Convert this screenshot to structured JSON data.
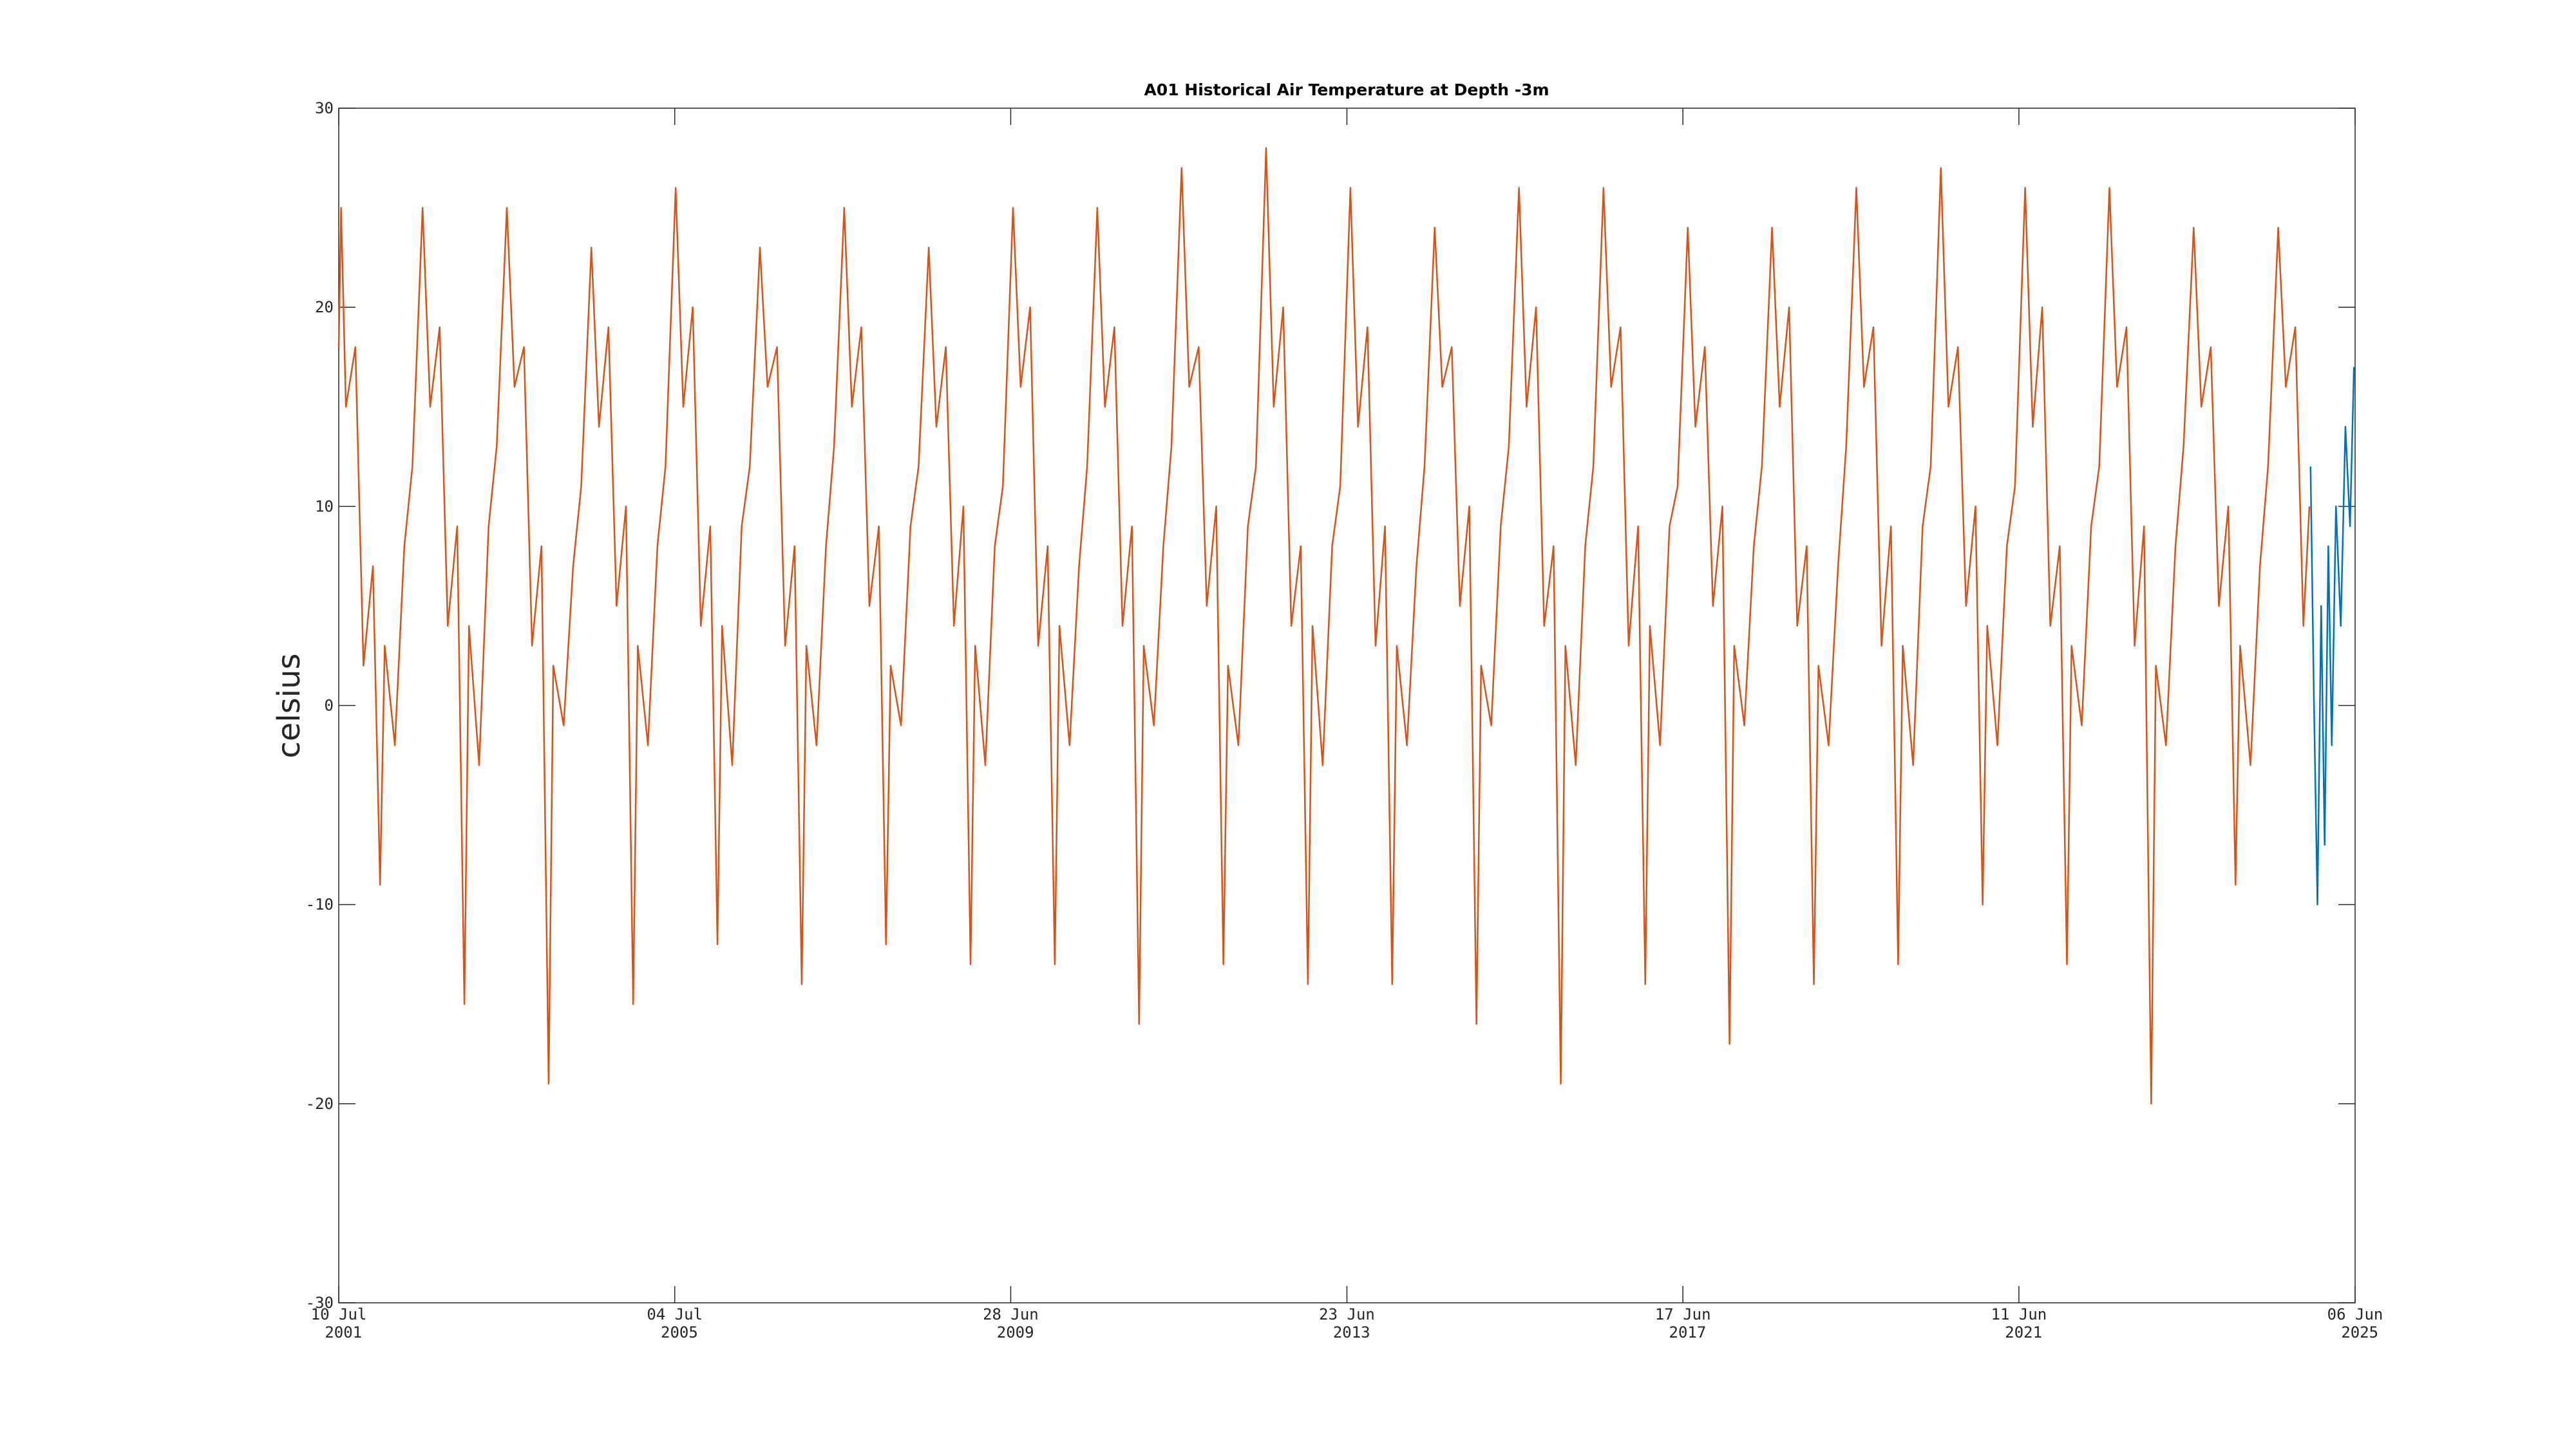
{
  "chart_data": {
    "type": "line",
    "title": "A01 Historical Air Temperature at Depth -3m",
    "ylabel": "celsius",
    "xlim": [
      "2001-07-10",
      "2025-06-06"
    ],
    "xticks": [
      {
        "value": "2001-07-10",
        "label": "10 Jul 2001"
      },
      {
        "value": "2005-07-04",
        "label": "04 Jul 2005"
      },
      {
        "value": "2009-06-28",
        "label": "28 Jun 2009"
      },
      {
        "value": "2013-06-23",
        "label": "23 Jun 2013"
      },
      {
        "value": "2017-06-17",
        "label": "17 Jun 2017"
      },
      {
        "value": "2021-06-11",
        "label": "11 Jun 2021"
      },
      {
        "value": "2025-06-06",
        "label": "06 Jun 2025"
      }
    ],
    "ylim": [
      -30,
      30
    ],
    "yticks": [
      -30,
      -20,
      -10,
      0,
      10,
      20,
      30
    ],
    "series": [
      {
        "color": "#d95319",
        "x": [
          "2001-07-10",
          "2001-07-20",
          "2001-08-10",
          "2001-09-20",
          "2001-10-25",
          "2001-12-05",
          "2002-01-05",
          "2002-01-25",
          "2002-03-10",
          "2002-04-20",
          "2002-05-25",
          "2002-07-08",
          "2002-08-10",
          "2002-09-20",
          "2002-10-25",
          "2002-12-05",
          "2003-01-05",
          "2003-01-25",
          "2003-03-10",
          "2003-04-20",
          "2003-05-25",
          "2003-07-08",
          "2003-08-10",
          "2003-09-20",
          "2003-10-25",
          "2003-12-05",
          "2004-01-05",
          "2004-01-25",
          "2004-03-10",
          "2004-04-20",
          "2004-05-25",
          "2004-07-08",
          "2004-08-10",
          "2004-09-20",
          "2004-10-25",
          "2004-12-05",
          "2005-01-05",
          "2005-01-25",
          "2005-03-10",
          "2005-04-20",
          "2005-05-25",
          "2005-07-08",
          "2005-08-10",
          "2005-09-20",
          "2005-10-25",
          "2005-12-05",
          "2006-01-05",
          "2006-01-25",
          "2006-03-10",
          "2006-04-20",
          "2006-05-25",
          "2006-07-08",
          "2006-08-10",
          "2006-09-20",
          "2006-10-25",
          "2006-12-05",
          "2007-01-05",
          "2007-01-25",
          "2007-03-10",
          "2007-04-20",
          "2007-05-25",
          "2007-07-08",
          "2007-08-10",
          "2007-09-20",
          "2007-10-25",
          "2007-12-05",
          "2008-01-05",
          "2008-01-25",
          "2008-03-10",
          "2008-04-20",
          "2008-05-25",
          "2008-07-08",
          "2008-08-10",
          "2008-09-20",
          "2008-10-25",
          "2008-12-05",
          "2009-01-05",
          "2009-01-25",
          "2009-03-10",
          "2009-04-20",
          "2009-05-25",
          "2009-07-08",
          "2009-08-10",
          "2009-09-20",
          "2009-10-25",
          "2009-12-05",
          "2010-01-05",
          "2010-01-25",
          "2010-03-10",
          "2010-04-20",
          "2010-05-25",
          "2010-07-08",
          "2010-08-10",
          "2010-09-20",
          "2010-10-25",
          "2010-12-05",
          "2011-01-05",
          "2011-01-25",
          "2011-03-10",
          "2011-04-20",
          "2011-05-25",
          "2011-07-08",
          "2011-08-10",
          "2011-09-20",
          "2011-10-25",
          "2011-12-05",
          "2012-01-05",
          "2012-01-25",
          "2012-03-10",
          "2012-04-20",
          "2012-05-25",
          "2012-07-08",
          "2012-08-10",
          "2012-09-20",
          "2012-10-25",
          "2012-12-05",
          "2013-01-05",
          "2013-01-25",
          "2013-03-10",
          "2013-04-20",
          "2013-05-25",
          "2013-07-08",
          "2013-08-10",
          "2013-09-20",
          "2013-10-25",
          "2013-12-05",
          "2014-01-05",
          "2014-01-25",
          "2014-03-10",
          "2014-04-20",
          "2014-05-25",
          "2014-07-08",
          "2014-08-10",
          "2014-09-20",
          "2014-10-25",
          "2014-12-05",
          "2015-01-05",
          "2015-01-25",
          "2015-03-10",
          "2015-04-20",
          "2015-05-25",
          "2015-07-08",
          "2015-08-10",
          "2015-09-20",
          "2015-10-25",
          "2015-12-05",
          "2016-01-05",
          "2016-01-25",
          "2016-03-10",
          "2016-04-20",
          "2016-05-25",
          "2016-07-08",
          "2016-08-10",
          "2016-09-20",
          "2016-10-25",
          "2016-12-05",
          "2017-01-05",
          "2017-01-25",
          "2017-03-10",
          "2017-04-20",
          "2017-05-25",
          "2017-07-08",
          "2017-08-10",
          "2017-09-20",
          "2017-10-25",
          "2017-12-05",
          "2018-01-05",
          "2018-01-25",
          "2018-03-10",
          "2018-04-20",
          "2018-05-25",
          "2018-07-08",
          "2018-08-10",
          "2018-09-20",
          "2018-10-25",
          "2018-12-05",
          "2019-01-05",
          "2019-01-25",
          "2019-03-10",
          "2019-04-20",
          "2019-05-25",
          "2019-07-08",
          "2019-08-10",
          "2019-09-20",
          "2019-10-25",
          "2019-12-05",
          "2020-01-05",
          "2020-01-25",
          "2020-03-10",
          "2020-04-20",
          "2020-05-25",
          "2020-07-08",
          "2020-08-10",
          "2020-09-20",
          "2020-10-25",
          "2020-12-05",
          "2021-01-05",
          "2021-01-25",
          "2021-03-10",
          "2021-04-20",
          "2021-05-25",
          "2021-07-08",
          "2021-08-10",
          "2021-09-20",
          "2021-10-25",
          "2021-12-05",
          "2022-01-05",
          "2022-01-25",
          "2022-03-10",
          "2022-04-20",
          "2022-05-25",
          "2022-07-08",
          "2022-08-10",
          "2022-09-20",
          "2022-10-25",
          "2022-12-05",
          "2023-01-05",
          "2023-01-25",
          "2023-03-10",
          "2023-04-20",
          "2023-05-25",
          "2023-07-08",
          "2023-08-10",
          "2023-09-20",
          "2023-10-25",
          "2023-12-05",
          "2024-01-05",
          "2024-01-25",
          "2024-03-10",
          "2024-04-20",
          "2024-05-25",
          "2024-07-08",
          "2024-08-10",
          "2024-09-20",
          "2024-10-25",
          "2024-11-20"
        ],
        "values": [
          18,
          25,
          15,
          18,
          2,
          7,
          -9,
          3,
          -2,
          8,
          12,
          25,
          15,
          19,
          4,
          9,
          -15,
          4,
          -3,
          9,
          13,
          25,
          16,
          18,
          3,
          8,
          -19,
          2,
          -1,
          7,
          11,
          23,
          14,
          19,
          5,
          10,
          -15,
          3,
          -2,
          8,
          12,
          26,
          15,
          20,
          4,
          9,
          -12,
          4,
          -3,
          9,
          12,
          23,
          16,
          18,
          3,
          8,
          -14,
          3,
          -2,
          8,
          13,
          25,
          15,
          19,
          5,
          9,
          -12,
          2,
          -1,
          9,
          12,
          23,
          14,
          18,
          4,
          10,
          -13,
          3,
          -3,
          8,
          11,
          25,
          16,
          20,
          3,
          8,
          -13,
          4,
          -2,
          7,
          12,
          25,
          15,
          19,
          4,
          9,
          -16,
          3,
          -1,
          8,
          13,
          27,
          16,
          18,
          5,
          10,
          -13,
          2,
          -2,
          9,
          12,
          28,
          15,
          20,
          4,
          8,
          -14,
          4,
          -3,
          8,
          11,
          26,
          14,
          19,
          3,
          9,
          -14,
          3,
          -2,
          7,
          12,
          24,
          16,
          18,
          5,
          10,
          -16,
          2,
          -1,
          9,
          13,
          26,
          15,
          20,
          4,
          8,
          -19,
          3,
          -3,
          8,
          12,
          26,
          16,
          19,
          3,
          9,
          -14,
          4,
          -2,
          9,
          11,
          24,
          14,
          18,
          5,
          10,
          -17,
          3,
          -1,
          8,
          12,
          24,
          15,
          20,
          4,
          8,
          -14,
          2,
          -2,
          7,
          13,
          26,
          16,
          19,
          3,
          9,
          -13,
          3,
          -3,
          9,
          12,
          27,
          15,
          18,
          5,
          10,
          -10,
          4,
          -2,
          8,
          11,
          26,
          14,
          20,
          4,
          8,
          -13,
          3,
          -1,
          9,
          12,
          26,
          16,
          19,
          3,
          9,
          -20,
          2,
          -2,
          8,
          13,
          24,
          15,
          18,
          5,
          10,
          -9,
          3,
          -3,
          7,
          12,
          24,
          16,
          19,
          4,
          10
        ]
      },
      {
        "color": "#0072bd",
        "x": [
          "2024-11-25",
          "2024-12-10",
          "2024-12-25",
          "2025-01-10",
          "2025-01-25",
          "2025-02-10",
          "2025-02-25",
          "2025-03-15",
          "2025-04-05",
          "2025-04-25",
          "2025-05-15",
          "2025-06-01"
        ],
        "values": [
          12,
          0,
          -10,
          5,
          -7,
          8,
          -2,
          10,
          4,
          14,
          9,
          17
        ]
      }
    ]
  }
}
